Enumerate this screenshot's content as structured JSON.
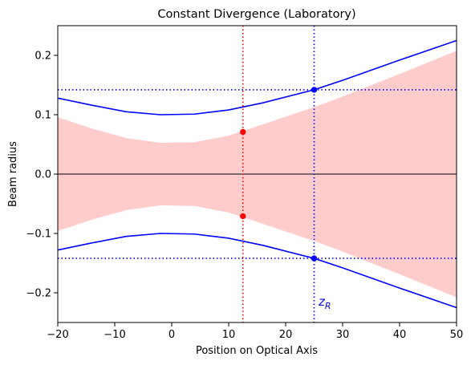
{
  "chart_data": {
    "type": "line",
    "title": "Constant Divergence (Laboratory)",
    "xlabel": "Position on Optical Axis",
    "ylabel": "Beam radius",
    "xlim": [
      -20,
      50
    ],
    "ylim": [
      -0.25,
      0.25
    ],
    "xticks": [
      {
        "value": -20,
        "label": "−20"
      },
      {
        "value": -10,
        "label": "−10"
      },
      0,
      10,
      20,
      30,
      40,
      50
    ],
    "yticks": [
      {
        "value": -0.2,
        "label": "−0.2"
      },
      {
        "value": -0.1,
        "label": "−0.1"
      },
      {
        "value": 0,
        "label": "0.0"
      },
      0.1,
      0.2
    ],
    "fill": {
      "color": "#ffcccc",
      "x": [
        -20,
        -14,
        -8,
        -2,
        4,
        10,
        16,
        25,
        30,
        40,
        50
      ],
      "upper": [
        0.095,
        0.076,
        0.06,
        0.052,
        0.053,
        0.064,
        0.083,
        0.112,
        0.13,
        0.168,
        0.207
      ],
      "lower": [
        -0.095,
        -0.076,
        -0.06,
        -0.052,
        -0.053,
        -0.064,
        -0.083,
        -0.112,
        -0.13,
        -0.168,
        -0.207
      ]
    },
    "series": [
      {
        "color": "#0000ff",
        "x": [
          -20,
          -14,
          -8,
          -2,
          4,
          10,
          16,
          25,
          30,
          40,
          50
        ],
        "values": [
          0.128,
          0.116,
          0.105,
          0.1,
          0.101,
          0.108,
          0.12,
          0.142,
          0.158,
          0.192,
          0.225
        ]
      },
      {
        "color": "#0000ff",
        "x": [
          -20,
          -14,
          -8,
          -2,
          4,
          10,
          16,
          25,
          30,
          40,
          50
        ],
        "values": [
          -0.128,
          -0.116,
          -0.105,
          -0.1,
          -0.101,
          -0.108,
          -0.12,
          -0.142,
          -0.158,
          -0.192,
          -0.225
        ]
      }
    ],
    "hlines": [
      {
        "y": 0,
        "color": "#000000",
        "dotted": false
      },
      {
        "y": 0.142,
        "color": "#0000ff",
        "dotted": true
      },
      {
        "y": -0.142,
        "color": "#0000ff",
        "dotted": true
      }
    ],
    "vlines": [
      {
        "x": 12.5,
        "color": "#ff0000"
      },
      {
        "x": 25,
        "color": "#0000ff"
      }
    ],
    "points": [
      {
        "x": 12.5,
        "y": 0.071,
        "color": "#ff0000"
      },
      {
        "x": 12.5,
        "y": -0.071,
        "color": "#ff0000"
      },
      {
        "x": 25,
        "y": 0.142,
        "color": "#0000ff"
      },
      {
        "x": 25,
        "y": -0.142,
        "color": "#0000ff"
      }
    ],
    "annotation": {
      "text": "z",
      "subscript": "R",
      "color": "#0000ff"
    }
  }
}
